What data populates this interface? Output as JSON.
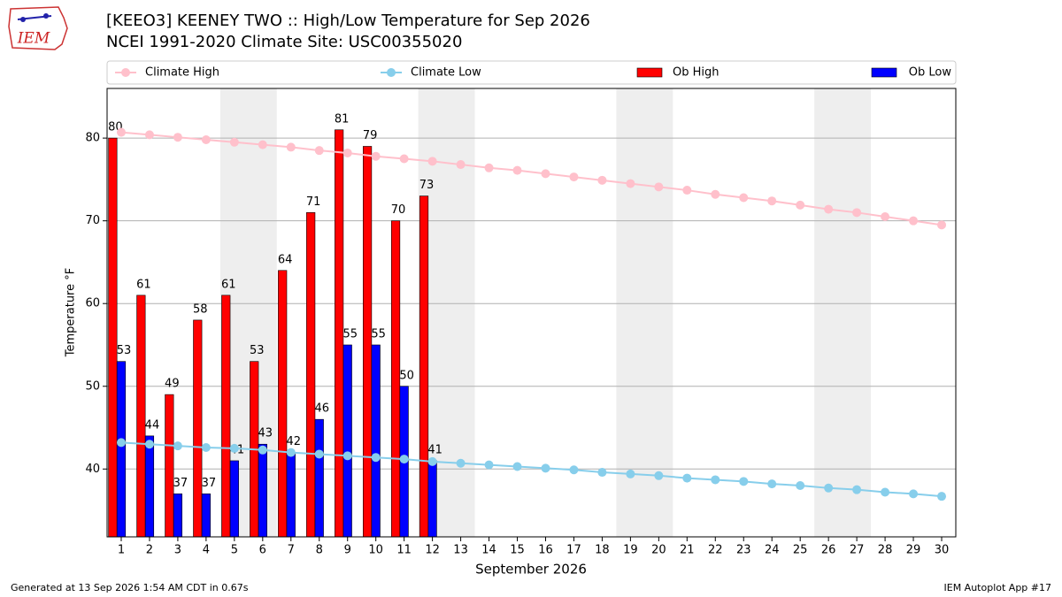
{
  "logo_text": "IEM",
  "footer_left": "Generated at 13 Sep 2026 1:54 AM CDT in 0.67s",
  "footer_right": "IEM Autoplot App #17",
  "chart_data": {
    "type": "bar",
    "title": "[KEEO3] KEENEY TWO :: High/Low Temperature for Sep 2026",
    "subtitle": "NCEI 1991-2020 Climate Site: USC00355020",
    "x_label": "September 2026",
    "y_label": "Temperature °F",
    "x": [
      1,
      2,
      3,
      4,
      5,
      6,
      7,
      8,
      9,
      10,
      11,
      12,
      13,
      14,
      15,
      16,
      17,
      18,
      19,
      20,
      21,
      22,
      23,
      24,
      25,
      26,
      27,
      28,
      29,
      30
    ],
    "xlim": [
      0.5,
      30.5
    ],
    "ylim": [
      31.8,
      86
    ],
    "yticks": [
      40,
      50,
      60,
      70,
      80
    ],
    "grid": true,
    "shaded_ranges": [
      [
        4.5,
        6.5
      ],
      [
        11.5,
        13.5
      ],
      [
        18.5,
        20.5
      ],
      [
        25.5,
        27.5
      ]
    ],
    "shade_color": "#eeeeee",
    "series": [
      {
        "name": "Climate High",
        "kind": "line",
        "color": "#ffc0cb",
        "values": [
          80.7,
          80.4,
          80.1,
          79.8,
          79.5,
          79.2,
          78.9,
          78.5,
          78.2,
          77.8,
          77.5,
          77.2,
          76.8,
          76.4,
          76.1,
          75.7,
          75.3,
          74.9,
          74.5,
          74.1,
          73.7,
          73.2,
          72.8,
          72.4,
          71.9,
          71.4,
          71.0,
          70.5,
          70.0,
          69.5
        ]
      },
      {
        "name": "Climate Low",
        "kind": "line",
        "color": "#87ceeb",
        "values": [
          43.2,
          43.0,
          42.8,
          42.6,
          42.5,
          42.3,
          42.0,
          41.8,
          41.6,
          41.4,
          41.2,
          40.9,
          40.7,
          40.5,
          40.3,
          40.1,
          39.9,
          39.6,
          39.4,
          39.2,
          38.9,
          38.7,
          38.5,
          38.2,
          38.0,
          37.7,
          37.5,
          37.2,
          37.0,
          36.7
        ]
      },
      {
        "name": "Ob High",
        "kind": "bar",
        "color": "#ff0000",
        "values": [
          80,
          61,
          49,
          58,
          61,
          53,
          64,
          71,
          81,
          79,
          70,
          73,
          null,
          null,
          null,
          null,
          null,
          null,
          null,
          null,
          null,
          null,
          null,
          null,
          null,
          null,
          null,
          null,
          null,
          null
        ]
      },
      {
        "name": "Ob Low",
        "kind": "bar",
        "color": "#0000ff",
        "values": [
          53,
          44,
          37,
          37,
          41,
          43,
          42,
          46,
          55,
          55,
          50,
          41,
          null,
          null,
          null,
          null,
          null,
          null,
          null,
          null,
          null,
          null,
          null,
          null,
          null,
          null,
          null,
          null,
          null,
          null
        ]
      }
    ]
  }
}
